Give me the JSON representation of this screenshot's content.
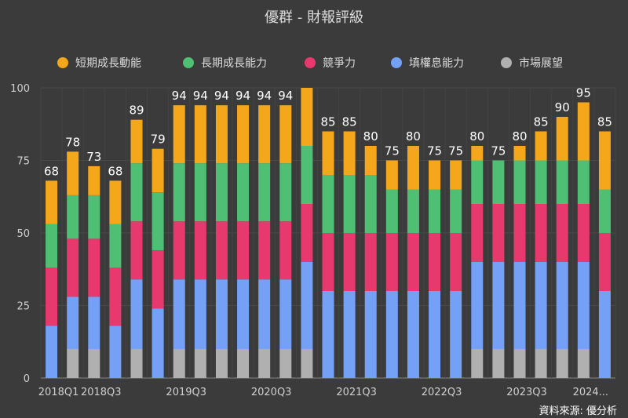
{
  "chart_data": {
    "type": "bar",
    "stacked": true,
    "title": "優群 - 財報評級",
    "source": "資料來源: 優分析",
    "ylim": [
      0,
      100
    ],
    "yticks": [
      0,
      25,
      50,
      75,
      100
    ],
    "grid": true,
    "legend_position": "top",
    "x_tick_labels": [
      {
        "index": 0,
        "label": "2018Q1"
      },
      {
        "index": 2,
        "label": "2018Q3"
      },
      {
        "index": 6,
        "label": "2019Q3"
      },
      {
        "index": 10,
        "label": "2020Q3"
      },
      {
        "index": 14,
        "label": "2021Q3"
      },
      {
        "index": 18,
        "label": "2022Q3"
      },
      {
        "index": 22,
        "label": "2023Q3"
      },
      {
        "index": 25,
        "label": "2024..."
      }
    ],
    "totals": [
      68,
      78,
      73,
      68,
      89,
      79,
      94,
      94,
      94,
      94,
      94,
      94,
      100,
      85,
      85,
      80,
      75,
      80,
      75,
      75,
      80,
      75,
      80,
      85,
      90,
      95,
      85
    ],
    "show_total_label": [
      true,
      true,
      true,
      true,
      true,
      true,
      true,
      true,
      true,
      true,
      true,
      true,
      false,
      true,
      true,
      true,
      true,
      true,
      true,
      true,
      true,
      true,
      true,
      true,
      true,
      true,
      true
    ],
    "series": [
      {
        "name": "市場展望",
        "color": "#b0b0b0",
        "values": [
          0,
          10,
          10,
          0,
          10,
          0,
          10,
          10,
          10,
          10,
          10,
          10,
          10,
          0,
          0,
          0,
          0,
          0,
          0,
          0,
          10,
          10,
          10,
          10,
          10,
          10,
          0
        ]
      },
      {
        "name": "填權息能力",
        "color": "#74a0f5",
        "values": [
          18,
          18,
          18,
          18,
          24,
          24,
          24,
          24,
          24,
          24,
          24,
          24,
          30,
          30,
          30,
          30,
          30,
          30,
          30,
          30,
          30,
          30,
          30,
          30,
          30,
          30,
          30
        ]
      },
      {
        "name": "競爭力",
        "color": "#e8396f",
        "values": [
          20,
          20,
          20,
          20,
          20,
          20,
          20,
          20,
          20,
          20,
          20,
          20,
          20,
          20,
          20,
          20,
          20,
          20,
          20,
          20,
          20,
          20,
          20,
          20,
          20,
          20,
          20
        ]
      },
      {
        "name": "長期成長能力",
        "color": "#4fbf74",
        "values": [
          15,
          15,
          15,
          15,
          20,
          20,
          20,
          20,
          20,
          20,
          20,
          20,
          20,
          20,
          20,
          20,
          15,
          15,
          15,
          15,
          15,
          15,
          15,
          15,
          15,
          15,
          15
        ]
      },
      {
        "name": "短期成長動能",
        "color": "#f5a71c",
        "values": [
          15,
          15,
          10,
          15,
          15,
          15,
          20,
          20,
          20,
          20,
          20,
          20,
          20,
          15,
          15,
          10,
          10,
          15,
          10,
          10,
          5,
          0,
          5,
          10,
          15,
          20,
          20
        ]
      }
    ],
    "legend_order": [
      "短期成長動能",
      "長期成長能力",
      "競爭力",
      "填權息能力",
      "市場展望"
    ]
  }
}
